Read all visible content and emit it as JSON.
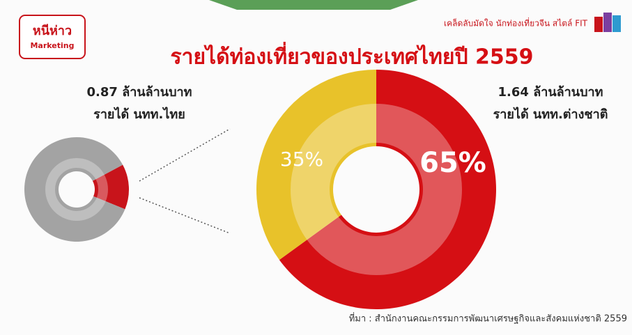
{
  "header": {
    "logo": "หนีห่าว",
    "logo_sub": "Marketing",
    "tagline": "เคล็ดลับมัดใจ นักท่องเที่ยวจีน สไตล์ FIT"
  },
  "chart_data": [
    {
      "type": "donut",
      "title": "รายได้ท่องเที่ยวของประเทศไทยปี 2559",
      "values": [
        35,
        65
      ],
      "value_labels": [
        "35%",
        "65%"
      ],
      "colors": [
        "#e8c22a",
        "#d50f14"
      ],
      "annotations": [
        "0.87 ล้านล้านบาท",
        "รายได้ นทท.ไทย",
        "1.64 ล้านล้านบาท",
        "รายได้ นทท.ต่างชาติ"
      ],
      "source": "ที่มา : สำนักงานคณะกรรมการพัฒนาเศรษฐกิจและสังคมแห่งชาติ 2559"
    },
    {
      "type": "donut",
      "categories": [
        null,
        null
      ],
      "values": [
        14,
        86
      ],
      "colors": [
        "#c8141b",
        "#a3a3a3"
      ]
    }
  ]
}
